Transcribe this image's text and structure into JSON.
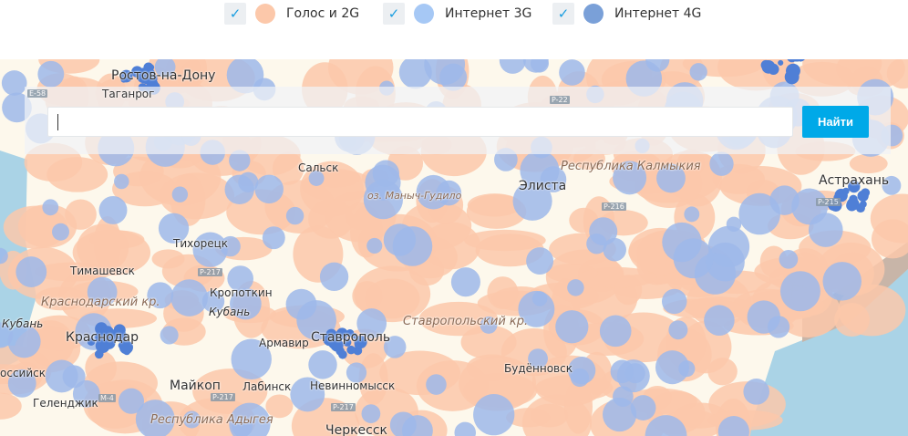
{
  "legend": [
    {
      "label": "Голос и 2G",
      "color": "#fcc8aa",
      "checked": true
    },
    {
      "label": "Интернет 3G",
      "color": "#a6c8f5",
      "checked": true
    },
    {
      "label": "Интернет 4G",
      "color": "#7aa0d8",
      "checked": true
    }
  ],
  "check_glyph": "✓",
  "search": {
    "value": "",
    "button": "Найти"
  },
  "map": {
    "colors": {
      "land": "#fdf8ec",
      "sea": "#aad3e6",
      "voice": "#fcc8aa",
      "g3": "#9db9ea",
      "g4": "#4f7fd6"
    },
    "labels": {
      "rostov": "Ростов-на-Дону",
      "taganrog": "Таганрог",
      "salsk": "Сальск",
      "manych": "оз. Маныч-Гудило",
      "elista": "Элиста",
      "kalmykia": "Республика Калмыкия",
      "astrakhan": "Астрахань",
      "tikhoretsk": "Тихорецк",
      "timashevsk": "Тимашевск",
      "krasnodar_kr": "Краснодарский кр.",
      "kropotkin": "Кропоткин",
      "kuban": "Кубань",
      "krasnodar": "Краснодар",
      "armavir": "Армавир",
      "stavropol": "Ставрополь",
      "stavropol_kr": "Ставропольский кр.",
      "budennovsk": "Будённовск",
      "maykop": "Майкоп",
      "labinsk": "Лабинск",
      "nevinnomyssk": "Невинномысск",
      "gelendzhik": "Геленджик",
      "novorossiysk": "оссийск",
      "adygea": "Республика Адыгея",
      "cherkessk": "Черкесск",
      "kuban2": "Кубань"
    },
    "roads": {
      "e58": "E-58",
      "p22": "P-22",
      "p216": "P-216",
      "p217a": "P-217",
      "p217b": "P-217",
      "m4": "M-4",
      "p215": "P-215",
      "p217c": "P-217"
    }
  }
}
